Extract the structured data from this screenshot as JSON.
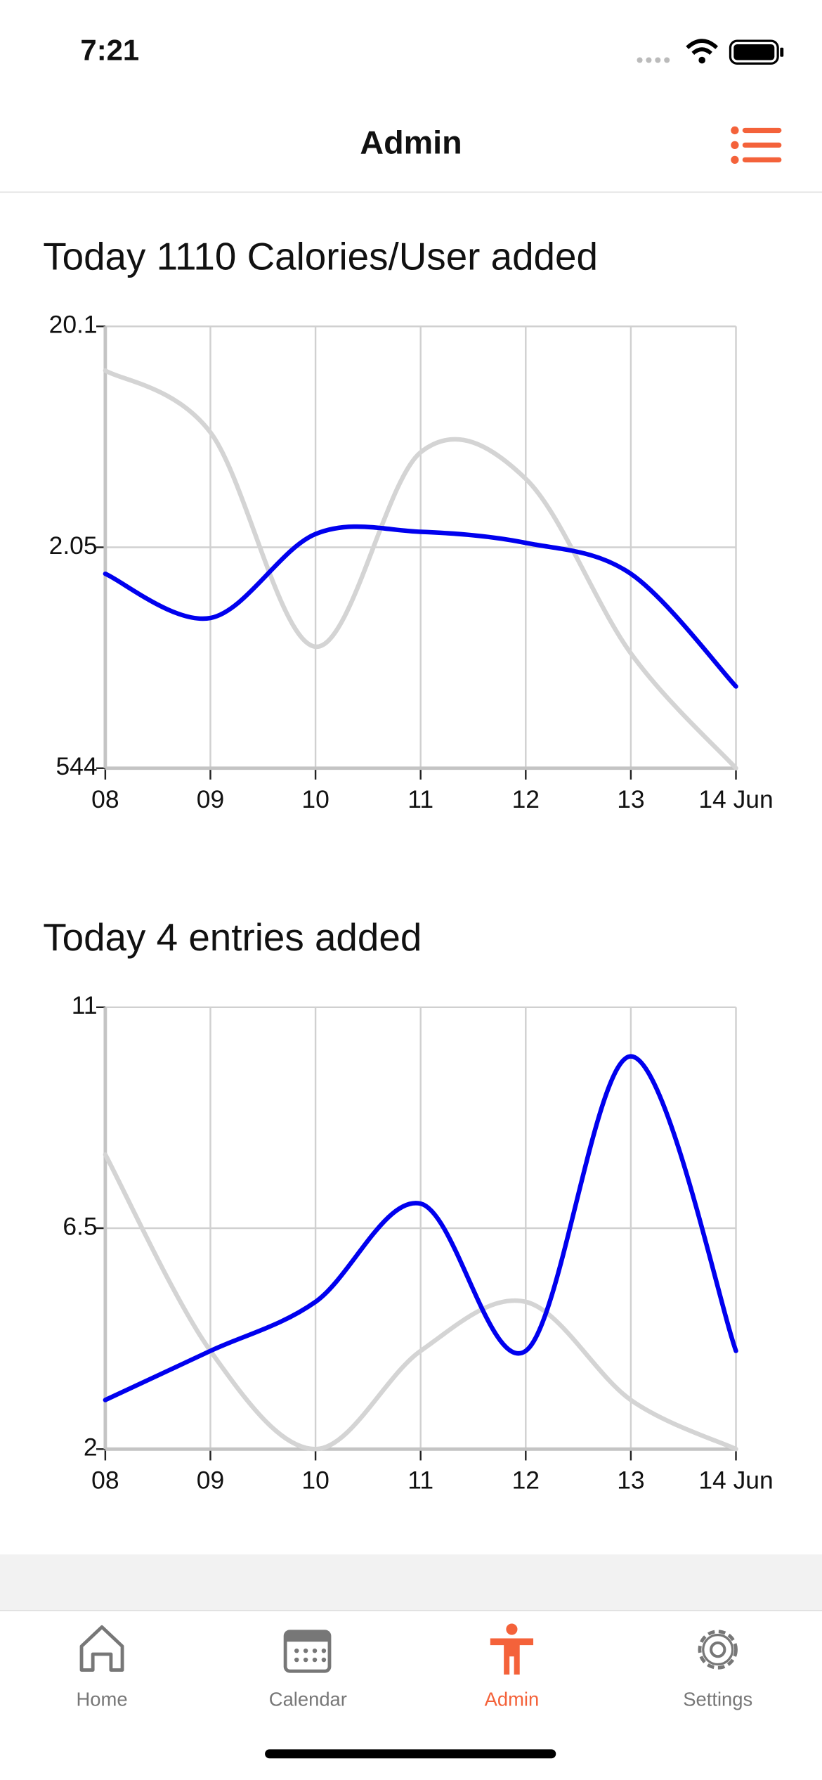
{
  "status_bar": {
    "time": "7:21"
  },
  "nav": {
    "title": "Admin"
  },
  "chart_data": [
    {
      "type": "line",
      "title": "Today 1110 Calories/User added",
      "categories": [
        "08",
        "09",
        "10",
        "11",
        "12",
        "13",
        "14 Jun"
      ],
      "ylim": [
        0,
        2
      ],
      "yticks": [
        {
          "value": 0,
          "label": "544"
        },
        {
          "value": 1,
          "label": "2.05"
        },
        {
          "value": 2,
          "label": "20.1"
        }
      ],
      "grid": true,
      "series": [
        {
          "color": "#d4d4d4",
          "values": [
            1.8,
            1.52,
            0.55,
            1.43,
            1.31,
            0.52,
            0
          ]
        },
        {
          "color": "#0000ee",
          "values": [
            0.88,
            0.68,
            1.06,
            1.07,
            1.02,
            0.88,
            0.37
          ]
        }
      ]
    },
    {
      "type": "line",
      "title": "Today 4 entries added",
      "categories": [
        "08",
        "09",
        "10",
        "11",
        "12",
        "13",
        "14 Jun"
      ],
      "ylim": [
        2,
        11
      ],
      "yticks": [
        2,
        6.5,
        11
      ],
      "grid": true,
      "series": [
        {
          "color": "#d4d4d4",
          "values": [
            8,
            4,
            2,
            4,
            5,
            3,
            2
          ]
        },
        {
          "color": "#0000ee",
          "values": [
            3,
            4,
            5,
            7,
            4,
            10,
            4
          ]
        }
      ]
    }
  ],
  "tab_bar": {
    "items": [
      {
        "label": "Home"
      },
      {
        "label": "Calendar"
      },
      {
        "label": "Admin"
      },
      {
        "label": "Settings"
      }
    ]
  }
}
